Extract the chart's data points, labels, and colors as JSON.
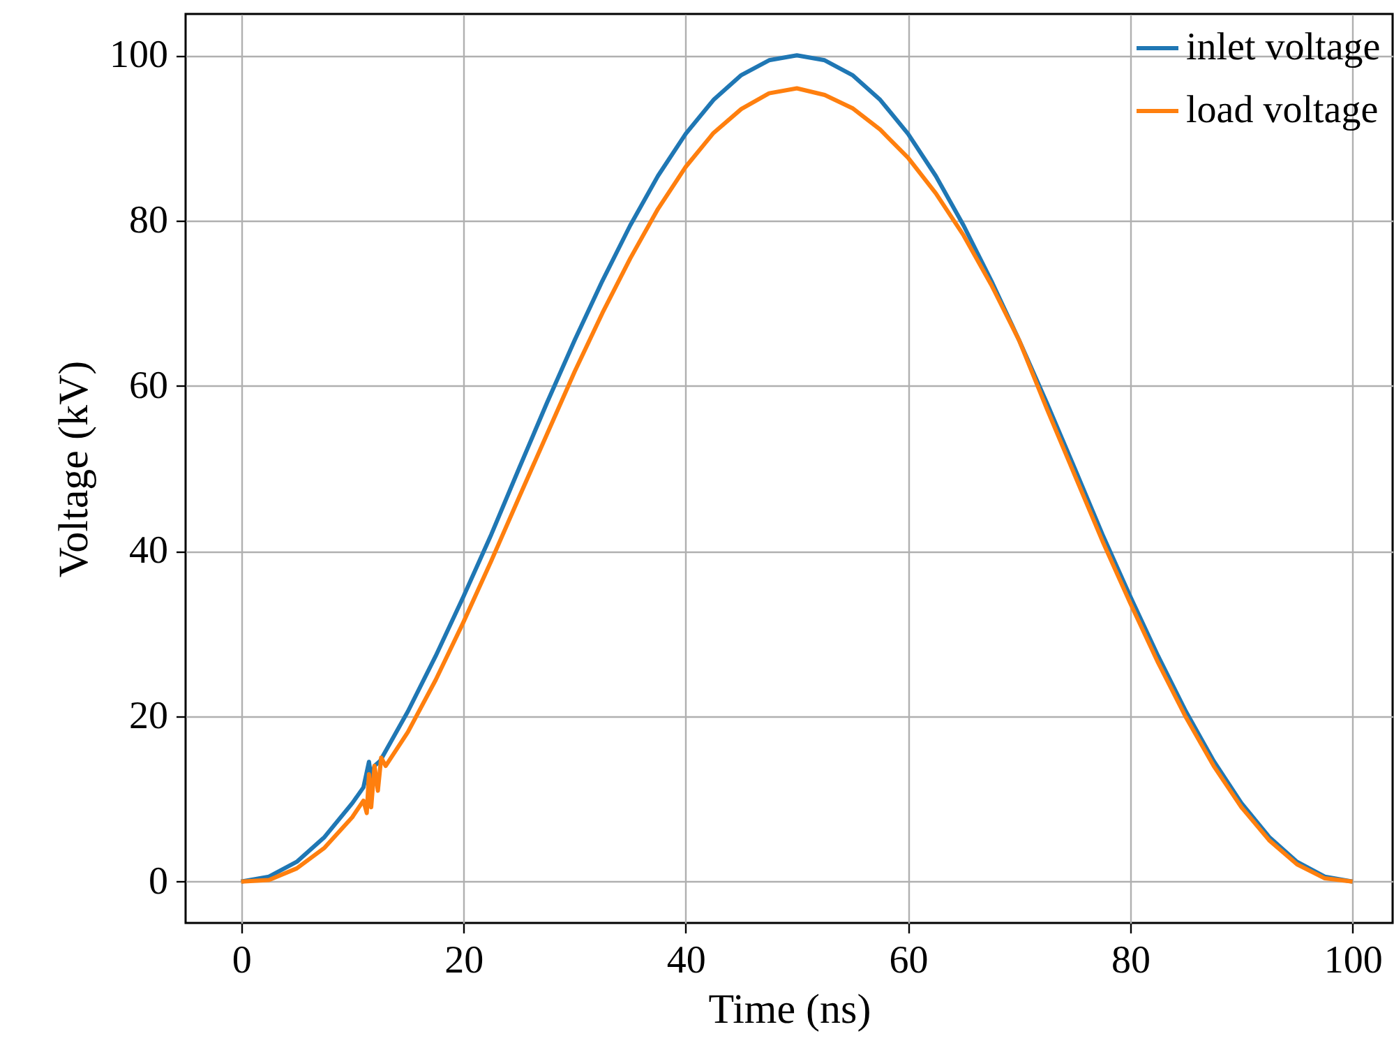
{
  "chart_data": {
    "type": "line",
    "xlabel": "Time (ns)",
    "ylabel": "Voltage (kV)",
    "xlim": [
      -5,
      103.6
    ],
    "ylim": [
      -5,
      105
    ],
    "xticks": [
      0,
      20,
      40,
      60,
      80,
      100
    ],
    "yticks": [
      0,
      20,
      40,
      60,
      80,
      100
    ],
    "grid": true,
    "legend": "top right",
    "series": [
      {
        "name": "inlet voltage",
        "color": "#1f77b4",
        "x": [
          0,
          2.5,
          5,
          7.5,
          10,
          11,
          11.5,
          11.7,
          12,
          12.5,
          15,
          17.5,
          20,
          22.5,
          25,
          27.5,
          30,
          32.5,
          35,
          37.5,
          40,
          42.5,
          45,
          47.5,
          50,
          52.5,
          55,
          57.5,
          60,
          62.5,
          65,
          67.5,
          70,
          72.5,
          75,
          77.5,
          80,
          82.5,
          85,
          87.5,
          90,
          92.5,
          95,
          97.5,
          100
        ],
        "values": [
          0,
          0.6,
          2.4,
          5.4,
          9.5,
          11.4,
          14.5,
          12.5,
          14,
          14.6,
          20.6,
          27.3,
          34.5,
          42,
          50,
          57.9,
          65.5,
          72.7,
          79.4,
          85.4,
          90.5,
          94.6,
          97.6,
          99.4,
          100,
          99.4,
          97.6,
          94.6,
          90.5,
          85.4,
          79.4,
          72.7,
          65.5,
          57.9,
          50,
          42,
          34.5,
          27.3,
          20.6,
          14.6,
          9.5,
          5.4,
          2.4,
          0.6,
          0
        ]
      },
      {
        "name": "load voltage",
        "color": "#ff7f0e",
        "x": [
          0,
          2.5,
          5,
          7.5,
          10,
          11,
          11.3,
          11.5,
          11.7,
          12,
          12.3,
          12.6,
          13,
          15,
          17.5,
          20,
          22.5,
          25,
          27.5,
          30,
          32.5,
          35,
          37.5,
          40,
          42.5,
          45,
          47.5,
          50,
          52.5,
          55,
          57.5,
          60,
          62.5,
          65,
          67.5,
          70,
          72.5,
          75,
          77.5,
          80,
          82.5,
          85,
          87.5,
          90,
          92.5,
          95,
          97.5,
          100
        ],
        "values": [
          0,
          0.2,
          1.6,
          4.1,
          7.8,
          9.8,
          8.3,
          13,
          9,
          14,
          11,
          15,
          14,
          18.1,
          24.4,
          31.4,
          38.8,
          46.5,
          54.1,
          61.7,
          68.8,
          75.4,
          81.4,
          86.5,
          90.6,
          93.5,
          95.4,
          96,
          95.2,
          93.6,
          91,
          87.6,
          83.3,
          78.2,
          72.2,
          65.5,
          57.2,
          49.2,
          41.2,
          33.7,
          26.5,
          19.9,
          14,
          9,
          5,
          2.1,
          0.4,
          0
        ]
      }
    ]
  }
}
